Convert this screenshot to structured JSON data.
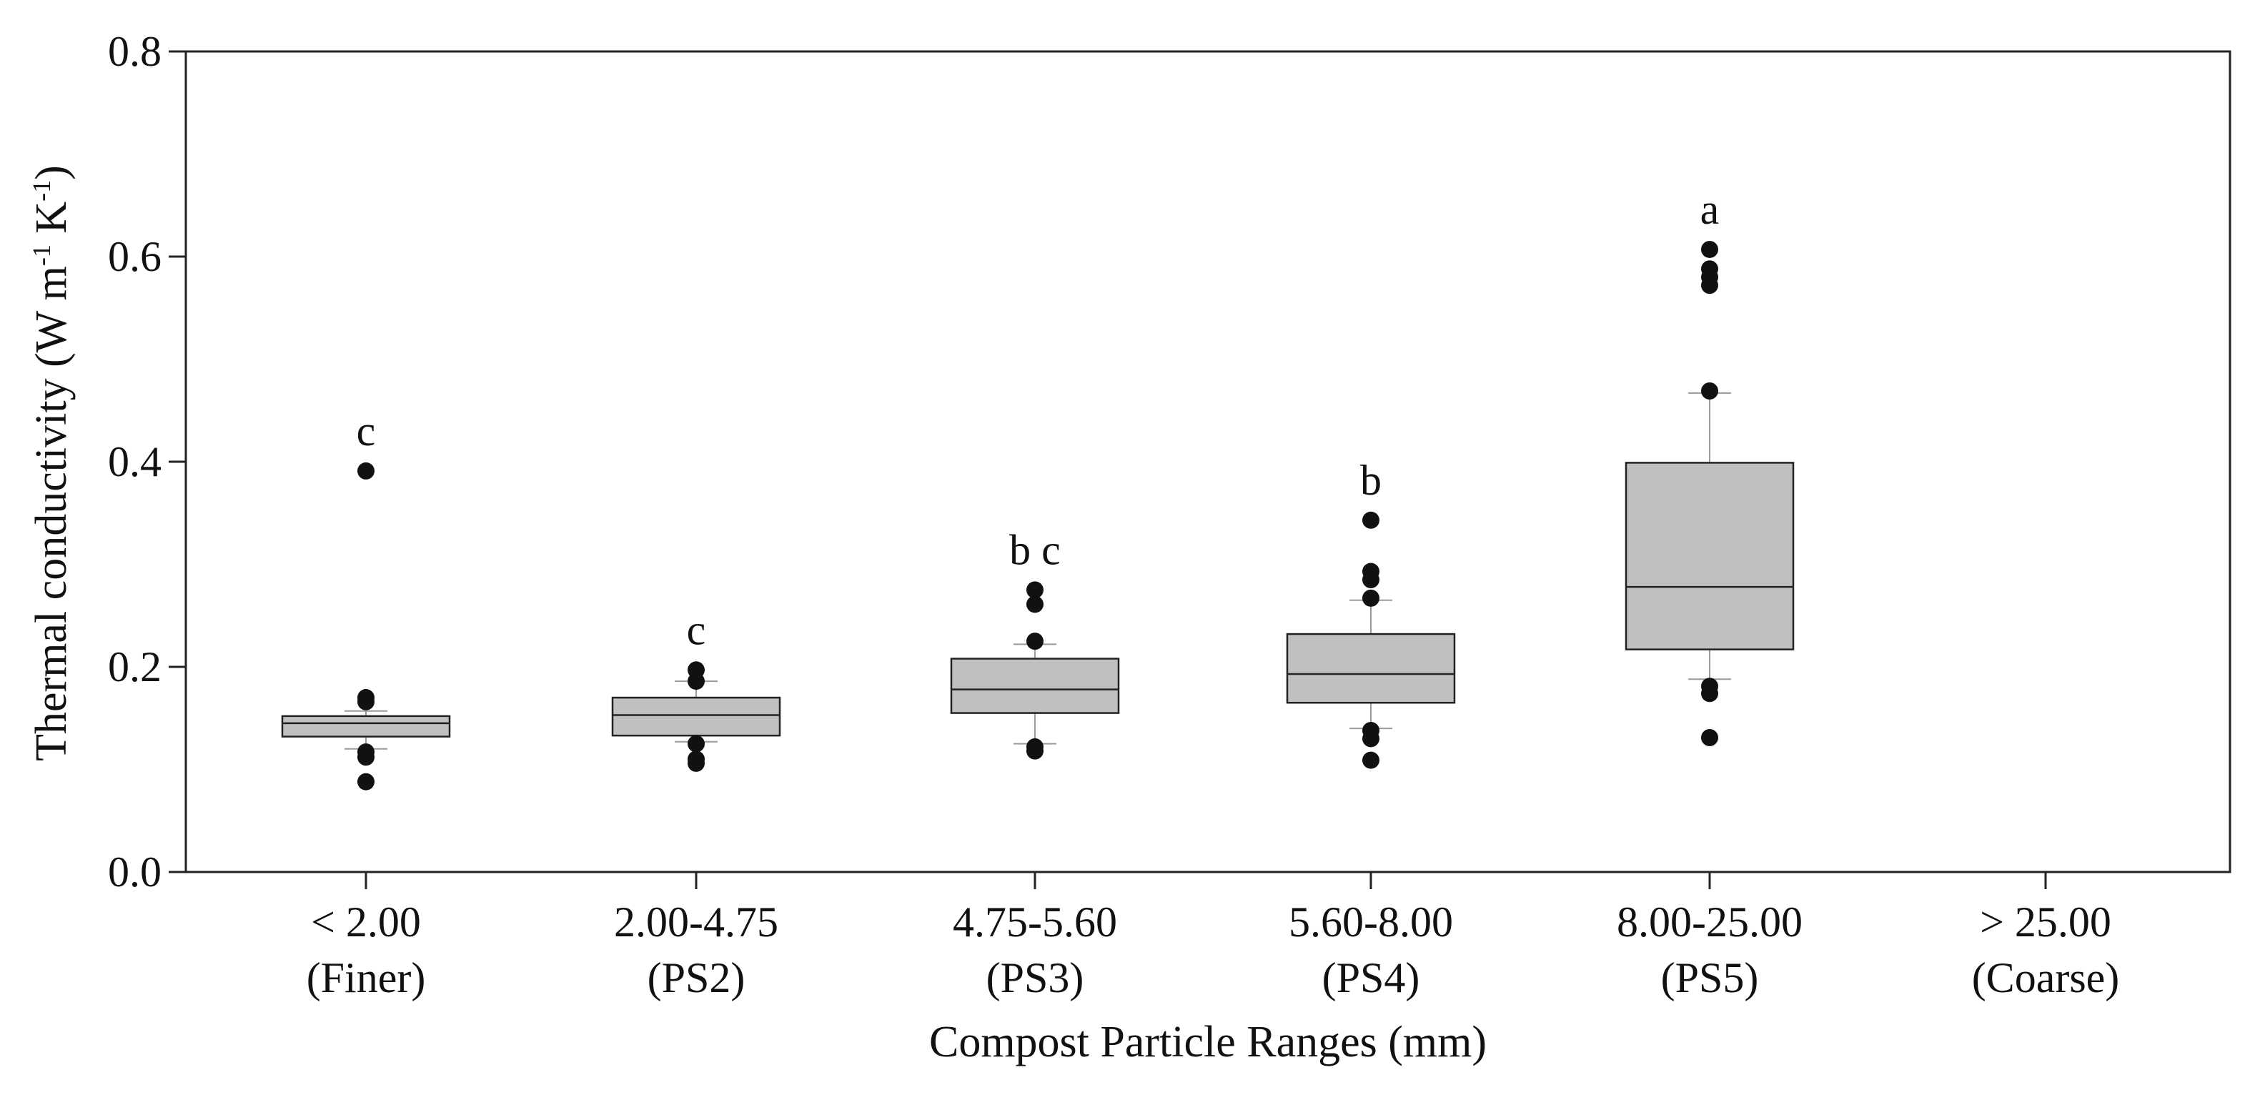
{
  "chart_data": {
    "type": "boxplot",
    "title": "",
    "xlabel": "Compost Particle Ranges (mm)",
    "ylabel": "Thermal conductivity (W m⁻¹ K⁻¹)",
    "ylabel_parts": {
      "main": "Thermal conductivity (W m",
      "exp1": "-1",
      "mid": " K",
      "exp2": "-1",
      "end": ")"
    },
    "ylim": [
      0.0,
      0.8
    ],
    "yticks": [
      0.0,
      0.2,
      0.4,
      0.6,
      0.8
    ],
    "ytick_labels": [
      "0.0",
      "0.2",
      "0.4",
      "0.6",
      "0.8"
    ],
    "grid": false,
    "categories": [
      {
        "range": "< 2.00",
        "name": "(Finer)"
      },
      {
        "range": "2.00-4.75",
        "name": "(PS2)"
      },
      {
        "range": "4.75-5.60",
        "name": "(PS3)"
      },
      {
        "range": "5.60-8.00",
        "name": "(PS4)"
      },
      {
        "range": "8.00-25.00",
        "name": "(PS5)"
      },
      {
        "range": "> 25.00",
        "name": "(Coarse)"
      }
    ],
    "boxes": [
      {
        "q1": 0.132,
        "median": 0.145,
        "q3": 0.152,
        "whisker_low": 0.12,
        "whisker_high": 0.157,
        "outliers": [
          0.391,
          0.17,
          0.166,
          0.117,
          0.112,
          0.088
        ],
        "letter": "c"
      },
      {
        "q1": 0.133,
        "median": 0.153,
        "q3": 0.17,
        "whisker_low": 0.127,
        "whisker_high": 0.186,
        "outliers": [
          0.197,
          0.186,
          0.125,
          0.11,
          0.106
        ],
        "letter": "c"
      },
      {
        "q1": 0.155,
        "median": 0.178,
        "q3": 0.208,
        "whisker_low": 0.125,
        "whisker_high": 0.222,
        "outliers": [
          0.275,
          0.261,
          0.225,
          0.122,
          0.118
        ],
        "letter": "b c"
      },
      {
        "q1": 0.165,
        "median": 0.193,
        "q3": 0.232,
        "whisker_low": 0.14,
        "whisker_high": 0.265,
        "outliers": [
          0.343,
          0.293,
          0.285,
          0.267,
          0.138,
          0.13,
          0.109
        ],
        "letter": "b"
      },
      {
        "q1": 0.217,
        "median": 0.278,
        "q3": 0.399,
        "whisker_low": 0.188,
        "whisker_high": 0.467,
        "outliers": [
          0.607,
          0.588,
          0.58,
          0.572,
          0.469,
          0.181,
          0.174,
          0.131
        ],
        "letter": "a"
      },
      null
    ],
    "box_fill": "#c0c0c0",
    "line_color": "#222222",
    "outlier_color": "#111111"
  }
}
